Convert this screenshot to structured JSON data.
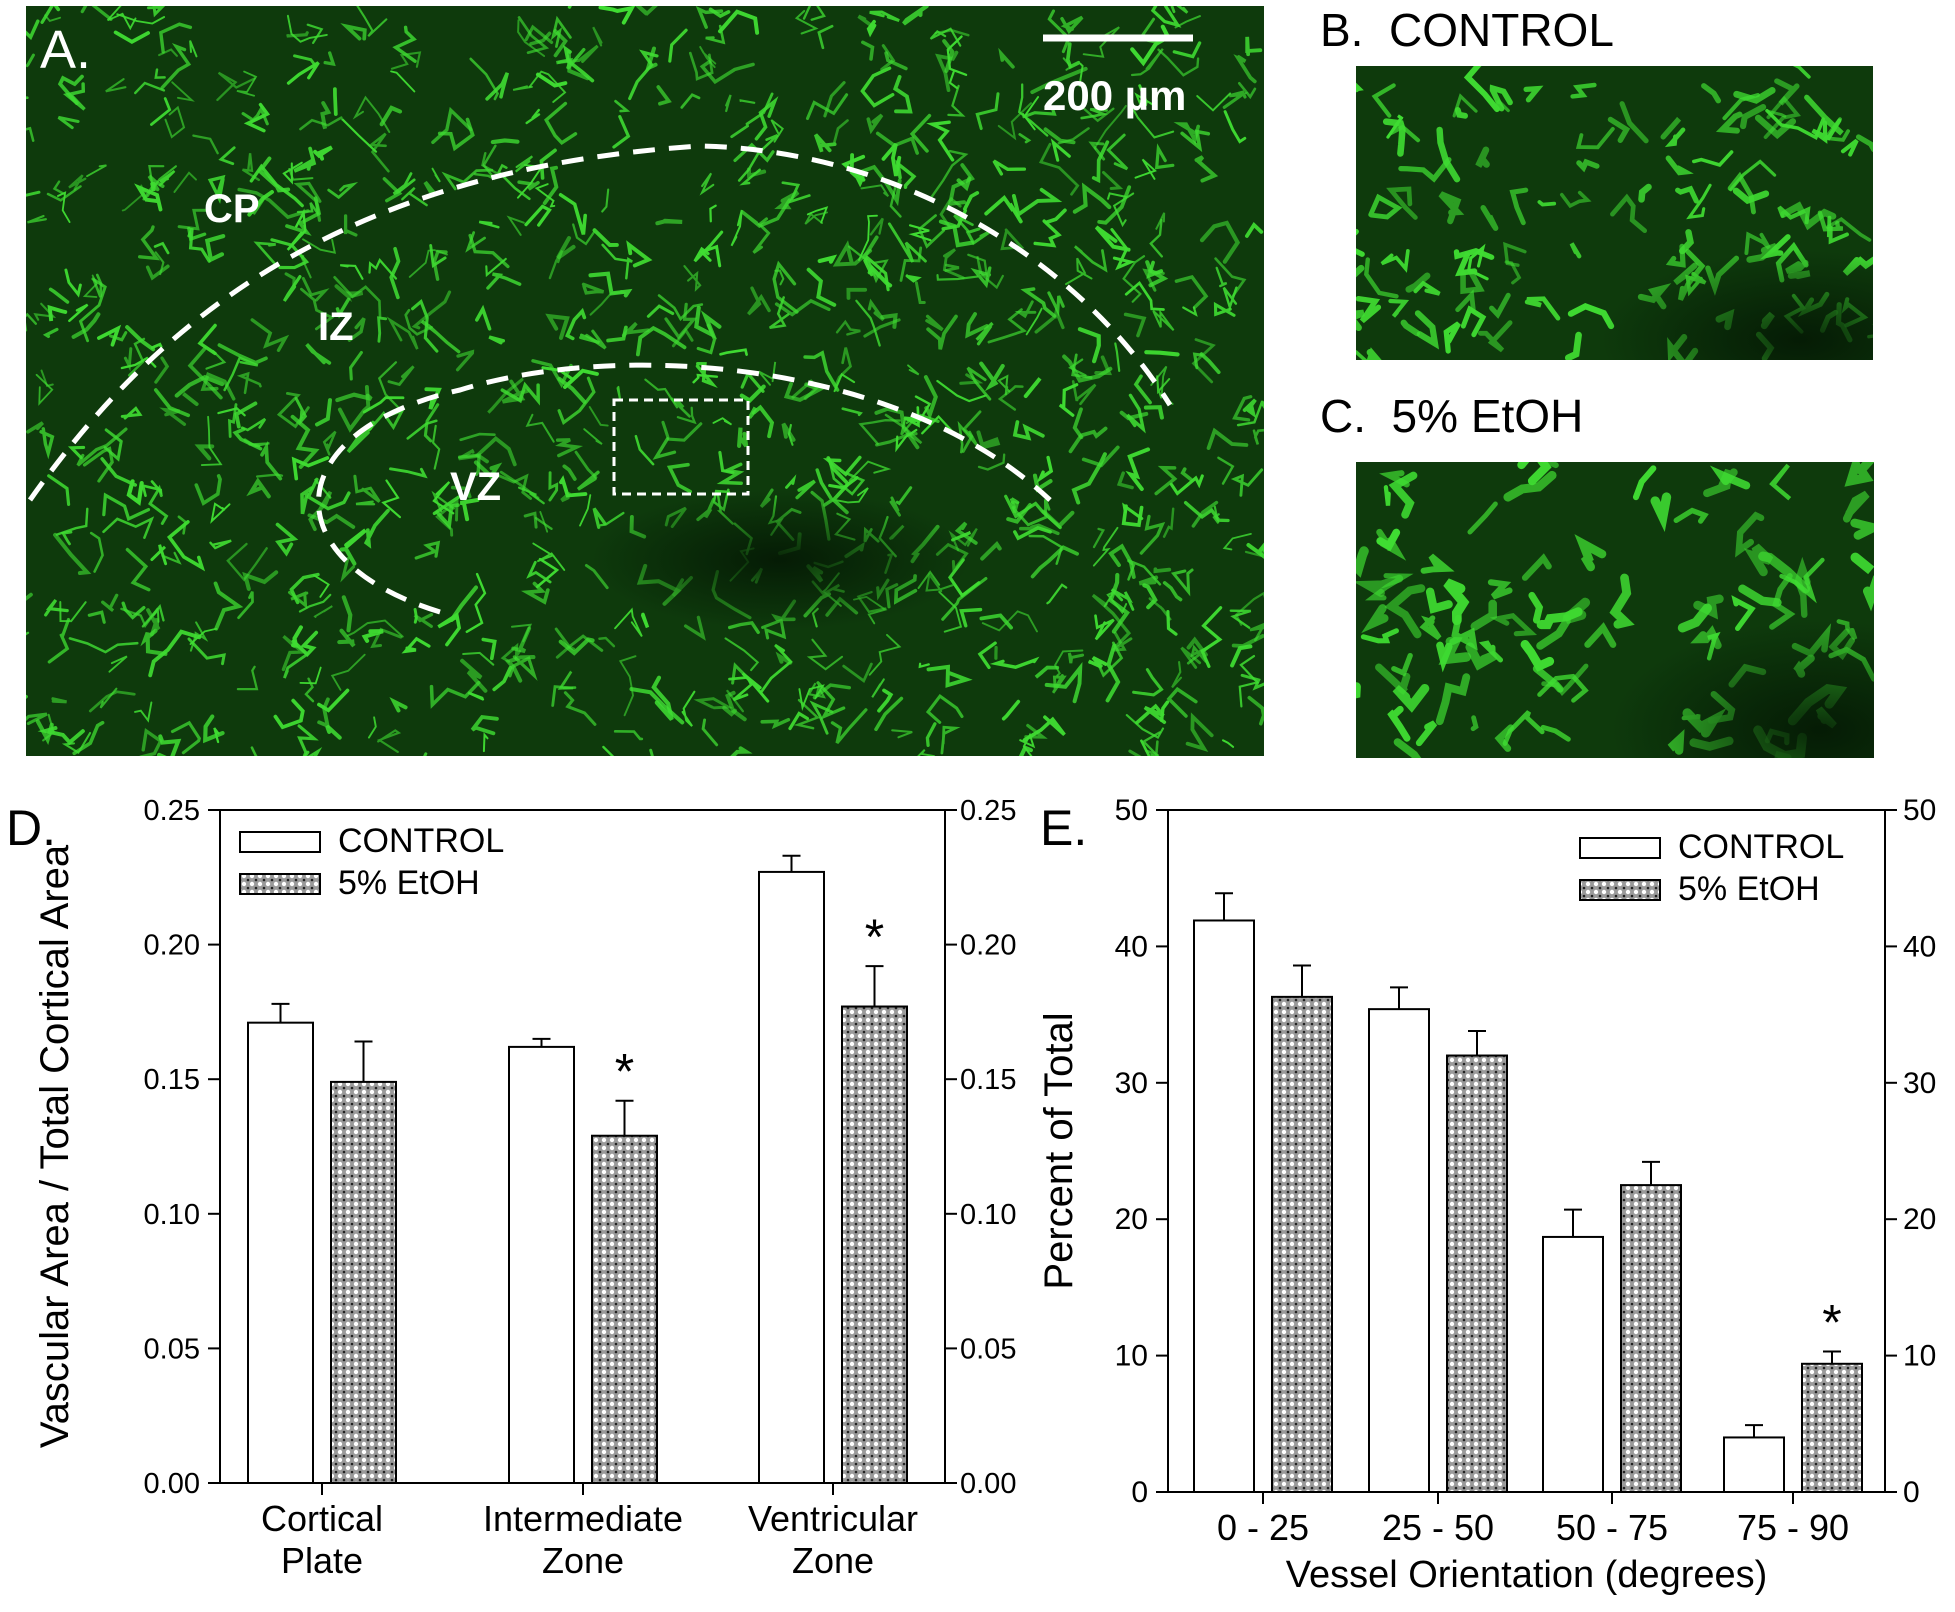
{
  "panel_a": {
    "letter": "A.",
    "scale_bar_label": "200 µm",
    "zone_labels": {
      "cp": "CP",
      "iz": "IZ",
      "vz": "VZ"
    }
  },
  "panel_b": {
    "title": "B.  CONTROL"
  },
  "panel_c": {
    "title": "C.  5% EtOH"
  },
  "colors": {
    "fluorescence_bg": "#0e3a0c",
    "vessel": "#3fdc32",
    "dashed_line": "#ffffff",
    "control_fill": "#ffffff",
    "etoh_fill": "#8a8a8a",
    "axis": "#000000"
  },
  "chart_data": [
    {
      "id": "D",
      "panel_letter": "D.",
      "type": "bar",
      "categories": [
        [
          "Cortical",
          "Plate"
        ],
        [
          "Intermediate",
          "Zone"
        ],
        [
          "Ventricular",
          "Zone"
        ]
      ],
      "series": [
        {
          "name": "CONTROL",
          "values": [
            0.171,
            0.162,
            0.227
          ],
          "errors": [
            0.007,
            0.003,
            0.006
          ],
          "pattern": "open"
        },
        {
          "name": "5% EtOH",
          "values": [
            0.149,
            0.129,
            0.177
          ],
          "errors": [
            0.015,
            0.013,
            0.015
          ],
          "pattern": "hatched"
        }
      ],
      "significance": [
        null,
        "*",
        "*"
      ],
      "ylabel": "Vascular Area / Total Cortical Area",
      "xlabel": "",
      "ylim": [
        0,
        0.25
      ],
      "yticks": [
        "0.00",
        "0.05",
        "0.10",
        "0.15",
        "0.20",
        "0.25"
      ],
      "right_axis_mirrored": true,
      "legend_position": "top-left"
    },
    {
      "id": "E",
      "panel_letter": "E.",
      "type": "bar",
      "categories": [
        [
          "0 - 25"
        ],
        [
          "25 - 50"
        ],
        [
          "50 - 75"
        ],
        [
          "75 - 90"
        ]
      ],
      "series": [
        {
          "name": "CONTROL",
          "values": [
            41.9,
            35.4,
            18.7,
            4.0
          ],
          "errors": [
            2.0,
            1.6,
            2.0,
            0.9
          ],
          "pattern": "open"
        },
        {
          "name": "5% EtOH",
          "values": [
            36.3,
            32.0,
            22.5,
            9.4
          ],
          "errors": [
            2.3,
            1.8,
            1.7,
            0.9
          ],
          "pattern": "hatched"
        }
      ],
      "significance": [
        null,
        null,
        null,
        "*"
      ],
      "ylabel": "Percent of Total",
      "xlabel": "Vessel Orientation (degrees)",
      "ylim": [
        0,
        50
      ],
      "yticks": [
        "0",
        "10",
        "20",
        "30",
        "40",
        "50"
      ],
      "right_axis_mirrored": true,
      "legend_position": "top-right"
    }
  ]
}
